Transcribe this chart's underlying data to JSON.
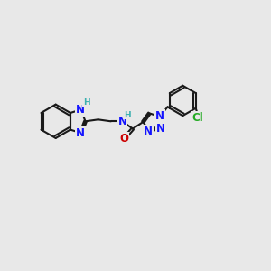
{
  "background_color": "#e8e8e8",
  "bond_color": "#1a1a1a",
  "N_color": "#1414ff",
  "O_color": "#cc0000",
  "Cl_color": "#22aa22",
  "H_color": "#3ab0b0",
  "figsize": [
    3.0,
    3.0
  ],
  "dpi": 100,
  "xlim": [
    0,
    15
  ],
  "ylim": [
    0,
    15
  ]
}
